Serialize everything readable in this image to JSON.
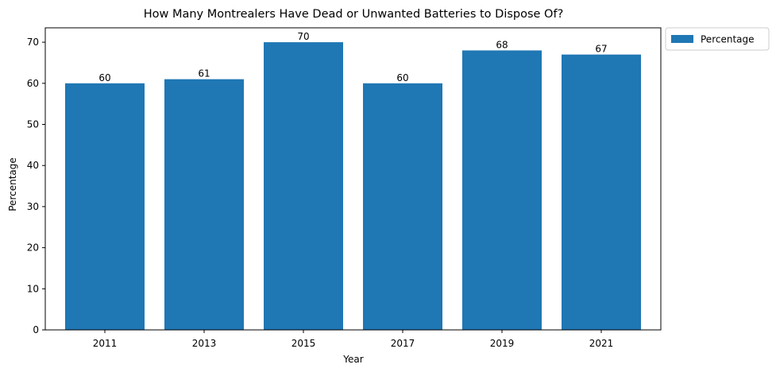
{
  "chart_data": {
    "type": "bar",
    "title": "How Many Montrealers Have Dead or Unwanted Batteries to Dispose Of?",
    "xlabel": "Year",
    "ylabel": "Percentage",
    "categories": [
      "2011",
      "2013",
      "2015",
      "2017",
      "2019",
      "2021"
    ],
    "series": [
      {
        "name": "Percentage",
        "values": [
          60,
          61,
          70,
          60,
          68,
          67
        ],
        "color": "#1f77b4"
      }
    ],
    "ylim": [
      0,
      73.5
    ],
    "yticks": [
      0,
      10,
      20,
      30,
      40,
      50,
      60,
      70
    ],
    "grid": false,
    "legend_position": "outside-top-right",
    "data_labels": true
  }
}
